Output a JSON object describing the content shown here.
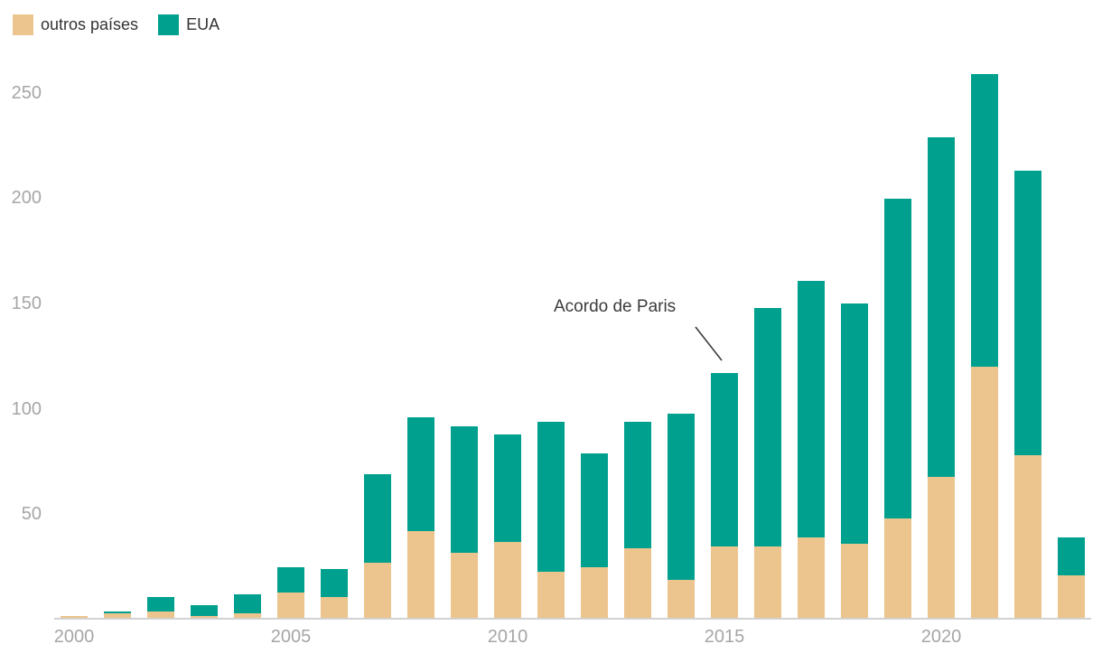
{
  "legend": {
    "items": [
      {
        "label": "outros países",
        "color": "#ecc48d"
      },
      {
        "label": "EUA",
        "color": "#00a08e"
      }
    ]
  },
  "annotation": {
    "text": "Acordo de Paris"
  },
  "chart_data": {
    "type": "bar",
    "stacked": true,
    "title": "",
    "xlabel": "",
    "ylabel": "",
    "categories": [
      "2000",
      "2001",
      "2002",
      "2003",
      "2004",
      "2005",
      "2006",
      "2007",
      "2008",
      "2009",
      "2010",
      "2011",
      "2012",
      "2013",
      "2014",
      "2015",
      "2016",
      "2017",
      "2018",
      "2019",
      "2020",
      "2021",
      "2022",
      "2023"
    ],
    "series": [
      {
        "name": "outros países",
        "color": "#ecc48d",
        "values": [
          1,
          2,
          3,
          1,
          2,
          12,
          10,
          26,
          41,
          31,
          36,
          22,
          24,
          33,
          18,
          34,
          34,
          38,
          35,
          47,
          67,
          119,
          77,
          20
        ]
      },
      {
        "name": "EUA",
        "color": "#00a08e",
        "values": [
          0,
          1,
          7,
          5,
          9,
          12,
          13,
          42,
          54,
          60,
          51,
          71,
          54,
          60,
          79,
          82,
          113,
          122,
          114,
          152,
          161,
          139,
          135,
          18
        ]
      }
    ],
    "totals": [
      1,
      3,
      10,
      6,
      11,
      24,
      23,
      68,
      95,
      91,
      87,
      93,
      78,
      93,
      97,
      116,
      147,
      160,
      149,
      199,
      228,
      258,
      212,
      38
    ],
    "y_ticks": [
      50,
      100,
      150,
      200,
      250
    ],
    "ylim": [
      0,
      270
    ],
    "x_label_years": [
      "2000",
      "2005",
      "2010",
      "2015",
      "2020"
    ],
    "grid": false,
    "legend_position": "top-left",
    "annotation": {
      "text": "Acordo de Paris",
      "target_year": "2015"
    }
  }
}
